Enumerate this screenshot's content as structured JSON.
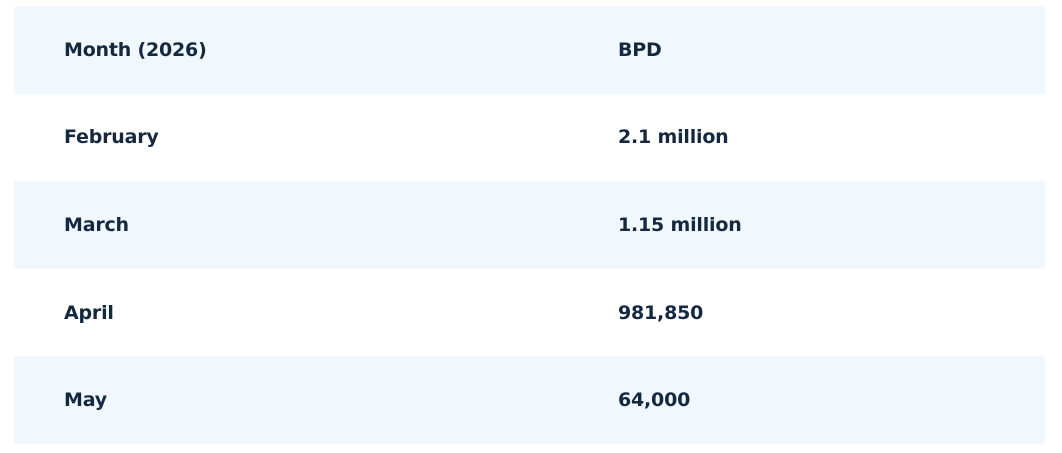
{
  "table": {
    "headers": [
      "Month (2026)",
      "BPD"
    ],
    "rows": [
      [
        "February",
        "2.1 million"
      ],
      [
        "March",
        "1.15 million"
      ],
      [
        "April",
        "981,850"
      ],
      [
        "May",
        "64,000"
      ]
    ]
  },
  "colors": {
    "shaded_row": "#f0f7fd",
    "text": "#14283f"
  }
}
